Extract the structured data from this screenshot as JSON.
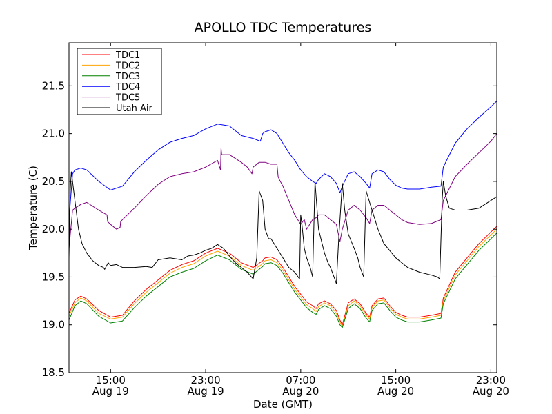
{
  "chart_data": {
    "type": "line",
    "title": "APOLLO TDC Temperatures",
    "xlabel": "Date (GMT)",
    "ylabel": "Temperature (C)",
    "x_unit": "hours since Aug 19 00:00 GMT",
    "xlim": [
      11.5,
      47.5
    ],
    "ylim": [
      18.5,
      21.95
    ],
    "yticks": [
      18.5,
      19.0,
      19.5,
      20.0,
      20.5,
      21.0,
      21.5
    ],
    "ytick_labels": [
      "18.5",
      "19.0",
      "19.5",
      "20.0",
      "20.5",
      "21.0",
      "21.5"
    ],
    "xticks": [
      {
        "x": 15,
        "time": "15:00",
        "date": "Aug 19"
      },
      {
        "x": 23,
        "time": "23:00",
        "date": "Aug 19"
      },
      {
        "x": 31,
        "time": "07:00",
        "date": "Aug 20"
      },
      {
        "x": 39,
        "time": "15:00",
        "date": "Aug 20"
      },
      {
        "x": 47,
        "time": "23:00",
        "date": "Aug 20"
      }
    ],
    "grid": false,
    "legend_position": "top-left",
    "series": [
      {
        "name": "TDC1",
        "color": "#ff0000",
        "x": [
          11.5,
          12.0,
          12.5,
          13.0,
          14.0,
          15.0,
          16.0,
          17.0,
          18.0,
          19.0,
          20.0,
          21.0,
          22.0,
          23.0,
          24.0,
          25.0,
          26.0,
          27.0,
          27.8,
          28.0,
          28.5,
          29.0,
          29.5,
          30.0,
          30.5,
          31.0,
          31.5,
          32.0,
          32.3,
          32.5,
          33.0,
          33.5,
          34.0,
          34.3,
          34.5,
          35.0,
          35.5,
          36.0,
          36.5,
          36.8,
          37.0,
          37.5,
          38.0,
          38.5,
          39.0,
          39.5,
          40.0,
          41.0,
          42.0,
          42.8,
          43.0,
          44.0,
          45.0,
          46.0,
          47.0,
          47.5
        ],
        "y": [
          19.12,
          19.26,
          19.3,
          19.27,
          19.15,
          19.08,
          19.1,
          19.25,
          19.37,
          19.47,
          19.57,
          19.63,
          19.67,
          19.75,
          19.8,
          19.75,
          19.65,
          19.6,
          19.67,
          19.7,
          19.71,
          19.68,
          19.6,
          19.5,
          19.4,
          19.32,
          19.24,
          19.2,
          19.17,
          19.22,
          19.25,
          19.22,
          19.15,
          19.05,
          19.0,
          19.23,
          19.27,
          19.22,
          19.12,
          19.08,
          19.2,
          19.27,
          19.28,
          19.2,
          19.13,
          19.1,
          19.08,
          19.08,
          19.1,
          19.12,
          19.28,
          19.55,
          19.7,
          19.85,
          19.97,
          20.03
        ]
      },
      {
        "name": "TDC2",
        "color": "#ffa500",
        "x": [
          11.5,
          12.0,
          12.5,
          13.0,
          14.0,
          15.0,
          16.0,
          17.0,
          18.0,
          19.0,
          20.0,
          21.0,
          22.0,
          23.0,
          24.0,
          25.0,
          26.0,
          27.0,
          27.8,
          28.0,
          28.5,
          29.0,
          29.5,
          30.0,
          30.5,
          31.0,
          31.5,
          32.0,
          32.3,
          32.5,
          33.0,
          33.5,
          34.0,
          34.3,
          34.5,
          35.0,
          35.5,
          36.0,
          36.5,
          36.8,
          37.0,
          37.5,
          38.0,
          38.5,
          39.0,
          39.5,
          40.0,
          41.0,
          42.0,
          42.8,
          43.0,
          44.0,
          45.0,
          46.0,
          47.0,
          47.5
        ],
        "y": [
          19.09,
          19.23,
          19.28,
          19.25,
          19.12,
          19.06,
          19.08,
          19.22,
          19.34,
          19.44,
          19.54,
          19.6,
          19.64,
          19.72,
          19.77,
          19.72,
          19.62,
          19.57,
          19.64,
          19.67,
          19.68,
          19.65,
          19.57,
          19.47,
          19.37,
          19.29,
          19.21,
          19.17,
          19.14,
          19.19,
          19.23,
          19.2,
          19.12,
          19.03,
          18.98,
          19.2,
          19.25,
          19.2,
          19.1,
          19.06,
          19.18,
          19.25,
          19.26,
          19.18,
          19.11,
          19.08,
          19.06,
          19.06,
          19.08,
          19.1,
          19.25,
          19.52,
          19.67,
          19.82,
          19.94,
          20.0
        ]
      },
      {
        "name": "TDC3",
        "color": "#008000",
        "x": [
          11.5,
          12.0,
          12.5,
          13.0,
          14.0,
          15.0,
          16.0,
          17.0,
          18.0,
          19.0,
          20.0,
          21.0,
          22.0,
          23.0,
          24.0,
          25.0,
          26.0,
          27.0,
          27.8,
          28.0,
          28.5,
          29.0,
          29.5,
          30.0,
          30.5,
          31.0,
          31.5,
          32.0,
          32.3,
          32.5,
          33.0,
          33.5,
          34.0,
          34.3,
          34.5,
          35.0,
          35.5,
          36.0,
          36.5,
          36.8,
          37.0,
          37.5,
          38.0,
          38.5,
          39.0,
          39.5,
          40.0,
          41.0,
          42.0,
          42.8,
          43.0,
          44.0,
          45.0,
          46.0,
          47.0,
          47.5
        ],
        "y": [
          19.05,
          19.2,
          19.25,
          19.22,
          19.09,
          19.02,
          19.04,
          19.18,
          19.3,
          19.4,
          19.5,
          19.55,
          19.59,
          19.67,
          19.73,
          19.68,
          19.58,
          19.53,
          19.61,
          19.64,
          19.65,
          19.62,
          19.54,
          19.44,
          19.34,
          19.26,
          19.18,
          19.13,
          19.11,
          19.16,
          19.2,
          19.17,
          19.09,
          19.0,
          18.97,
          19.17,
          19.22,
          19.17,
          19.07,
          19.03,
          19.15,
          19.22,
          19.23,
          19.15,
          19.08,
          19.05,
          19.03,
          19.03,
          19.05,
          19.07,
          19.22,
          19.48,
          19.63,
          19.78,
          19.9,
          19.96
        ]
      },
      {
        "name": "TDC4",
        "color": "#0000ff",
        "x": [
          11.5,
          11.8,
          12.0,
          12.5,
          13.0,
          14.0,
          15.0,
          16.0,
          17.0,
          18.0,
          19.0,
          20.0,
          21.0,
          22.0,
          23.0,
          24.0,
          25.0,
          26.0,
          27.0,
          27.6,
          27.8,
          28.0,
          28.5,
          29.0,
          29.5,
          30.0,
          30.5,
          31.0,
          31.5,
          32.0,
          32.3,
          32.5,
          33.0,
          33.5,
          34.0,
          34.3,
          34.5,
          35.0,
          35.5,
          36.0,
          36.5,
          36.8,
          37.0,
          37.5,
          38.0,
          38.5,
          39.0,
          39.5,
          40.0,
          41.0,
          42.0,
          42.8,
          43.0,
          44.0,
          45.0,
          46.0,
          47.0,
          47.5
        ],
        "y": [
          20.1,
          20.58,
          20.62,
          20.64,
          20.62,
          20.5,
          20.41,
          20.45,
          20.6,
          20.72,
          20.83,
          20.91,
          20.95,
          20.98,
          21.05,
          21.1,
          21.08,
          20.98,
          20.95,
          20.92,
          21.0,
          21.02,
          21.04,
          21.0,
          20.9,
          20.8,
          20.72,
          20.62,
          20.55,
          20.5,
          20.48,
          20.52,
          20.58,
          20.55,
          20.48,
          20.38,
          20.45,
          20.58,
          20.6,
          20.55,
          20.48,
          20.43,
          20.58,
          20.62,
          20.6,
          20.52,
          20.46,
          20.43,
          20.42,
          20.42,
          20.44,
          20.45,
          20.65,
          20.9,
          21.05,
          21.17,
          21.28,
          21.34
        ]
      },
      {
        "name": "TDC5",
        "color": "#800080",
        "x": [
          11.5,
          11.8,
          12.0,
          12.5,
          13.0,
          14.0,
          14.7,
          14.75,
          15.0,
          15.5,
          15.8,
          15.85,
          16.0,
          17.0,
          18.0,
          19.0,
          20.0,
          21.0,
          22.0,
          23.0,
          24.0,
          24.25,
          24.3,
          24.35,
          25.0,
          26.0,
          26.5,
          26.9,
          27.0,
          27.5,
          28.0,
          28.5,
          29.0,
          29.1,
          29.2,
          29.5,
          30.0,
          30.5,
          31.0,
          31.3,
          31.5,
          32.0,
          32.3,
          32.5,
          33.0,
          33.5,
          34.0,
          34.3,
          34.5,
          35.0,
          35.5,
          36.0,
          36.5,
          36.8,
          37.0,
          37.5,
          38.0,
          38.5,
          39.0,
          39.5,
          40.0,
          41.0,
          42.0,
          42.8,
          43.0,
          44.0,
          45.0,
          46.0,
          47.0,
          47.5
        ],
        "y": [
          19.8,
          20.2,
          20.22,
          20.26,
          20.28,
          20.2,
          20.15,
          20.08,
          20.05,
          20.0,
          20.02,
          20.08,
          20.1,
          20.22,
          20.35,
          20.47,
          20.55,
          20.58,
          20.6,
          20.65,
          20.72,
          20.62,
          20.85,
          20.78,
          20.78,
          20.7,
          20.65,
          20.58,
          20.65,
          20.7,
          20.7,
          20.68,
          20.68,
          20.55,
          20.52,
          20.45,
          20.3,
          20.15,
          20.05,
          20.1,
          20.0,
          20.1,
          20.12,
          20.15,
          20.15,
          20.1,
          20.05,
          19.87,
          20.0,
          20.2,
          20.25,
          20.2,
          20.12,
          20.06,
          20.2,
          20.25,
          20.25,
          20.2,
          20.15,
          20.1,
          20.07,
          20.05,
          20.06,
          20.1,
          20.3,
          20.55,
          20.68,
          20.8,
          20.92,
          21.0
        ]
      },
      {
        "name": "Utah Air",
        "color": "#000000",
        "x": [
          11.5,
          11.6,
          11.7,
          12.0,
          12.3,
          12.6,
          13.0,
          13.5,
          14.0,
          14.4,
          14.5,
          14.8,
          15.0,
          15.5,
          16.0,
          17.0,
          18.0,
          18.5,
          19.0,
          20.0,
          21.0,
          21.5,
          22.0,
          22.5,
          23.0,
          23.5,
          24.0,
          24.5,
          25.0,
          25.5,
          26.0,
          26.5,
          27.0,
          27.3,
          27.5,
          27.8,
          28.0,
          28.3,
          28.5,
          29.0,
          29.5,
          30.0,
          30.5,
          30.9,
          31.0,
          31.1,
          31.3,
          31.5,
          31.8,
          32.0,
          32.2,
          32.5,
          32.8,
          33.0,
          33.3,
          33.5,
          33.8,
          34.0,
          34.2,
          34.5,
          34.7,
          35.0,
          35.5,
          35.8,
          36.0,
          36.3,
          36.5,
          37.0,
          37.5,
          38.0,
          39.0,
          40.0,
          41.0,
          42.0,
          42.5,
          42.7,
          42.9,
          43.0,
          43.2,
          43.5,
          44.0,
          45.0,
          46.0,
          47.0,
          47.5
        ],
        "y": [
          19.7,
          20.4,
          20.6,
          20.3,
          20.0,
          19.85,
          19.75,
          19.67,
          19.62,
          19.6,
          19.58,
          19.65,
          19.62,
          19.63,
          19.6,
          19.6,
          19.61,
          19.6,
          19.68,
          19.7,
          19.68,
          19.72,
          19.73,
          19.75,
          19.78,
          19.8,
          19.84,
          19.8,
          19.72,
          19.65,
          19.6,
          19.55,
          19.48,
          19.7,
          20.4,
          20.3,
          20.0,
          19.9,
          19.9,
          19.8,
          19.7,
          19.6,
          19.55,
          19.48,
          20.15,
          20.05,
          19.8,
          19.7,
          19.6,
          19.5,
          20.5,
          20.0,
          19.85,
          19.75,
          19.65,
          19.6,
          19.5,
          19.43,
          19.9,
          20.48,
          20.2,
          19.95,
          19.8,
          19.7,
          19.6,
          19.5,
          20.4,
          20.2,
          20.0,
          19.85,
          19.7,
          19.6,
          19.55,
          19.52,
          19.5,
          19.48,
          20.3,
          20.5,
          20.35,
          20.22,
          20.2,
          20.2,
          20.22,
          20.3,
          20.34
        ]
      }
    ]
  }
}
